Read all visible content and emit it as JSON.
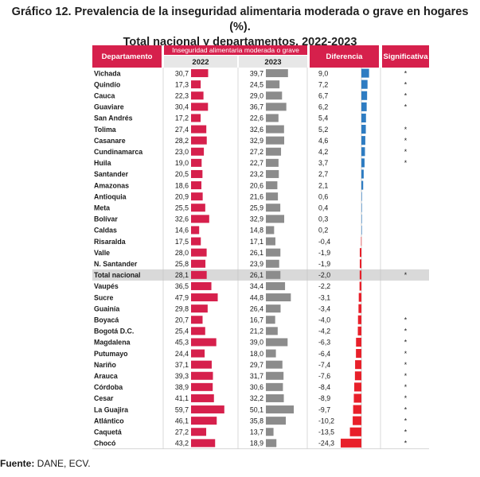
{
  "title_line1": "Gráfico 12. Prevalencia de la inseguridad alimentaria moderada o grave en hogares (%).",
  "title_line2": "Total nacional y departamentos, 2022-2023",
  "source_label": "Fuente:",
  "source_text": " DANE, ECV.",
  "colors": {
    "header_bg": "#d6204c",
    "bar_2022": "#d6204c",
    "bar_2023": "#8c8c8c",
    "diff_positive": "#2e7cc2",
    "diff_negative": "#e8202a",
    "highlight_row": "#d9d9d9",
    "header_text": "#ffffff"
  },
  "chart_data": {
    "type": "table",
    "headers": {
      "department": "Departamento",
      "group": "Inseguridad alimentaria moderada o grave",
      "y2022": "2022",
      "y2023": "2023",
      "difference": "Diferencia",
      "significant": "Significativa"
    },
    "highlight_row": "Total nacional",
    "rows": [
      {
        "name": "Vichada",
        "v2022": "30,7",
        "v2023": "39,7",
        "diff": "9,0",
        "sig": "*"
      },
      {
        "name": "Quindío",
        "v2022": "17,3",
        "v2023": "24,5",
        "diff": "7,2",
        "sig": "*"
      },
      {
        "name": "Cauca",
        "v2022": "22,3",
        "v2023": "29,0",
        "diff": "6,7",
        "sig": "*"
      },
      {
        "name": "Guaviare",
        "v2022": "30,4",
        "v2023": "36,7",
        "diff": "6,2",
        "sig": "*"
      },
      {
        "name": "San Andrés",
        "v2022": "17,2",
        "v2023": "22,6",
        "diff": "5,4",
        "sig": ""
      },
      {
        "name": "Tolima",
        "v2022": "27,4",
        "v2023": "32,6",
        "diff": "5,2",
        "sig": "*"
      },
      {
        "name": "Casanare",
        "v2022": "28,2",
        "v2023": "32,9",
        "diff": "4,6",
        "sig": "*"
      },
      {
        "name": "Cundinamarca",
        "v2022": "23,0",
        "v2023": "27,2",
        "diff": "4,2",
        "sig": "*"
      },
      {
        "name": "Huila",
        "v2022": "19,0",
        "v2023": "22,7",
        "diff": "3,7",
        "sig": "*"
      },
      {
        "name": "Santander",
        "v2022": "20,5",
        "v2023": "23,2",
        "diff": "2,7",
        "sig": ""
      },
      {
        "name": "Amazonas",
        "v2022": "18,6",
        "v2023": "20,6",
        "diff": "2,1",
        "sig": ""
      },
      {
        "name": "Antioquia",
        "v2022": "20,9",
        "v2023": "21,6",
        "diff": "0,6",
        "sig": ""
      },
      {
        "name": "Meta",
        "v2022": "25,5",
        "v2023": "25,9",
        "diff": "0,4",
        "sig": ""
      },
      {
        "name": "Bolívar",
        "v2022": "32,6",
        "v2023": "32,9",
        "diff": "0,3",
        "sig": ""
      },
      {
        "name": "Caldas",
        "v2022": "14,6",
        "v2023": "14,8",
        "diff": "0,2",
        "sig": ""
      },
      {
        "name": "Risaralda",
        "v2022": "17,5",
        "v2023": "17,1",
        "diff": "-0,4",
        "sig": ""
      },
      {
        "name": "Valle",
        "v2022": "28,0",
        "v2023": "26,1",
        "diff": "-1,9",
        "sig": ""
      },
      {
        "name": "N. Santander",
        "v2022": "25,8",
        "v2023": "23,9",
        "diff": "-1,9",
        "sig": ""
      },
      {
        "name": "Total nacional",
        "v2022": "28,1",
        "v2023": "26,1",
        "diff": "-2,0",
        "sig": "*"
      },
      {
        "name": "Vaupés",
        "v2022": "36,5",
        "v2023": "34,4",
        "diff": "-2,2",
        "sig": ""
      },
      {
        "name": "Sucre",
        "v2022": "47,9",
        "v2023": "44,8",
        "diff": "-3,1",
        "sig": ""
      },
      {
        "name": "Guainía",
        "v2022": "29,8",
        "v2023": "26,4",
        "diff": "-3,4",
        "sig": ""
      },
      {
        "name": "Boyacá",
        "v2022": "20,7",
        "v2023": "16,7",
        "diff": "-4,0",
        "sig": "*"
      },
      {
        "name": "Bogotá D.C.",
        "v2022": "25,4",
        "v2023": "21,2",
        "diff": "-4,2",
        "sig": "*"
      },
      {
        "name": "Magdalena",
        "v2022": "45,3",
        "v2023": "39,0",
        "diff": "-6,3",
        "sig": "*"
      },
      {
        "name": "Putumayo",
        "v2022": "24,4",
        "v2023": "18,0",
        "diff": "-6,4",
        "sig": "*"
      },
      {
        "name": "Nariño",
        "v2022": "37,1",
        "v2023": "29,7",
        "diff": "-7,4",
        "sig": "*"
      },
      {
        "name": "Arauca",
        "v2022": "39,3",
        "v2023": "31,7",
        "diff": "-7,6",
        "sig": "*"
      },
      {
        "name": "Córdoba",
        "v2022": "38,9",
        "v2023": "30,6",
        "diff": "-8,4",
        "sig": "*"
      },
      {
        "name": "Cesar",
        "v2022": "41,1",
        "v2023": "32,2",
        "diff": "-8,9",
        "sig": "*"
      },
      {
        "name": "La Guajira",
        "v2022": "59,7",
        "v2023": "50,1",
        "diff": "-9,7",
        "sig": "*"
      },
      {
        "name": "Atlántico",
        "v2022": "46,1",
        "v2023": "35,8",
        "diff": "-10,2",
        "sig": "*"
      },
      {
        "name": "Caquetá",
        "v2022": "27,2",
        "v2023": "13,7",
        "diff": "-13,5",
        "sig": "*"
      },
      {
        "name": "Chocó",
        "v2022": "43,2",
        "v2023": "18,9",
        "diff": "-24,3",
        "sig": "*"
      }
    ]
  }
}
